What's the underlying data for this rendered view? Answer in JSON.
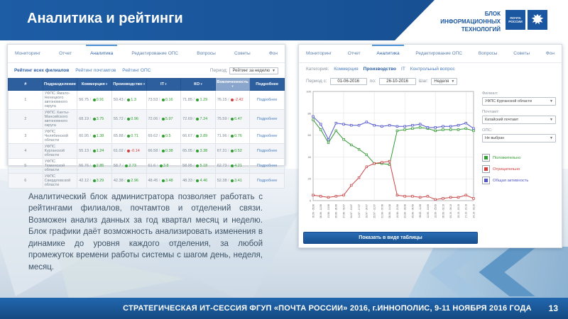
{
  "slide": {
    "title": "Аналитика и рейтинги",
    "org_block": [
      "БЛОК",
      "ИНФОРМАЦИОННЫХ",
      "ТЕХНОЛОГИЙ"
    ],
    "logo_text": [
      "ПОЧТА",
      "РОССИИ"
    ],
    "description": "Аналитический блок администратора позволяет работать с рейтингами филиалов, почтамтов и отделений связи. Возможен анализ данных за год квартал месяц и неделю. Блок графики даёт возможность анализировать изменения в динамике до уровня каждого отделения, за любой промежуток времени работы системы с шагом день, неделя, месяц.",
    "footer_text": "СТРАТЕГИЧЕСКАЯ ИТ-СЕССИЯ ФГУП «ПОЧТА РОССИИ» 2016, г.ИННОПОЛИС, 9-11 НОЯБРЯ 2016 ГОДА",
    "page_number": "13"
  },
  "colors": {
    "header_blue": "#1a57a0",
    "table_header_blue": "#2d5f9f",
    "sorted_column_blue": "#8aa6cc",
    "positive_green": "#2e9e2e",
    "negative_red": "#d43d3d",
    "activity_blue": "#4f55c8",
    "link_blue": "#4a7dbf"
  },
  "nav_tabs": [
    "Мониторинг",
    "Отчет",
    "Аналитика",
    "Редактирование ОПС",
    "Вопросы",
    "Советы",
    "Фон"
  ],
  "active_tab": "Аналитика",
  "ratings_panel": {
    "subtabs": [
      "Рейтинг всех филиалов",
      "Рейтинг почтамтов",
      "Рейтинг ОПС"
    ],
    "active_subtab": "Рейтинг всех филиалов",
    "period_label": "Период:",
    "period_value": "Рейтинг за неделю",
    "table": {
      "headers": [
        "#",
        "Подразделение",
        "Коммерция",
        "Производство",
        "IT",
        "КО",
        "Вовлеченность",
        "Подробнее"
      ],
      "sorted_column": "Вовлеченность",
      "details_label": "Подробнее",
      "rows": [
        {
          "num": "1",
          "name": "УФПС Ямало-Ненецкого автономного округа",
          "cells": [
            [
              "56.75",
              "0.91"
            ],
            [
              "50.43",
              "1.3"
            ],
            [
              "73.53",
              "0.16"
            ],
            [
              "71.85",
              "1.29"
            ],
            [
              "76.15",
              "-2.42"
            ]
          ]
        },
        {
          "num": "2",
          "name": "УФПС Ханты-Мансийского автономного округа",
          "cells": [
            [
              "68.19",
              "3.75"
            ],
            [
              "55.72",
              "0.96"
            ],
            [
              "72.06",
              "5.97"
            ],
            [
              "72.69",
              "7.24"
            ],
            [
              "75.59",
              "6.47"
            ]
          ]
        },
        {
          "num": "3",
          "name": "УФПС Челябинской области",
          "cells": [
            [
              "60.95",
              "1.38"
            ],
            [
              "65.88",
              "0.71"
            ],
            [
              "69.62",
              "0.5"
            ],
            [
              "66.67",
              "3.89"
            ],
            [
              "71.96",
              "0.76"
            ]
          ]
        },
        {
          "num": "4",
          "name": "УФПС Курганской области",
          "cells": [
            [
              "55.13",
              "1.24"
            ],
            [
              "61.02",
              "-0.14"
            ],
            [
              "66.58",
              "0.38"
            ],
            [
              "65.05",
              "3.38"
            ],
            [
              "67.31",
              "0.52"
            ]
          ]
        },
        {
          "num": "5",
          "name": "УФПС Тюменской области",
          "cells": [
            [
              "56.76",
              "2.85"
            ],
            [
              "58.7",
              "2.73"
            ],
            [
              "61.6",
              "3.8"
            ],
            [
              "58.95",
              "5.18"
            ],
            [
              "62.73",
              "4.21"
            ]
          ]
        },
        {
          "num": "6",
          "name": "УФПС Свердловской области",
          "cells": [
            [
              "42.12",
              "3.29"
            ],
            [
              "42.38",
              "2.96"
            ],
            [
              "48.45",
              "3.48"
            ],
            [
              "48.33",
              "4.46"
            ],
            [
              "52.38",
              "3.41"
            ]
          ]
        }
      ]
    }
  },
  "analytics_panel": {
    "category_label": "Категория:",
    "categories": [
      "Коммерция",
      "Производство",
      "IT",
      "Контрольный вопрос"
    ],
    "active_category": "Производство",
    "period_from_label": "Период с:",
    "period_from": "01-06-2016",
    "period_to_label": "по:",
    "period_to": "26-10-2016",
    "step_label": "Шаг:",
    "step_value": "Неделя",
    "filters": [
      {
        "label": "Филиал:",
        "value": "УФПС Курганской области"
      },
      {
        "label": "Почтамт:",
        "value": "Катайский почтамт"
      },
      {
        "label": "ОПС:",
        "value": "Не выбран"
      }
    ],
    "legend": [
      {
        "label": "Положительно",
        "color": "#2e9e2e"
      },
      {
        "label": "Отрицательно",
        "color": "#d43d3d"
      },
      {
        "label": "Общая активность",
        "color": "#4f55c8"
      }
    ],
    "table_button": "Показать в виде таблицы"
  },
  "chart_data": {
    "type": "line",
    "title": "",
    "xlabel": "",
    "ylabel": "",
    "ylim": [
      0,
      100
    ],
    "yticks": [
      0,
      20,
      40,
      60,
      80,
      100
    ],
    "grid": true,
    "legend_position": "right",
    "categories": [
      "30.05 - 05.06",
      "06.06 - 12.06",
      "13.06 - 19.06",
      "20.06 - 26.06",
      "27.06 - 03.07",
      "04.07 - 10.07",
      "11.07 - 17.07",
      "18.07 - 24.07",
      "25.07 - 31.07",
      "01.08 - 07.08",
      "08.08 - 14.08",
      "15.08 - 21.08",
      "22.08 - 28.08",
      "29.08 - 04.09",
      "05.09 - 11.09",
      "12.09 - 18.09",
      "19.09 - 25.09",
      "26.09 - 02.10",
      "03.10 - 09.10",
      "10.10 - 16.10",
      "17.10 - 23.10",
      "24.10 - 30.10"
    ],
    "series": [
      {
        "name": "Положительно",
        "color": "#339933",
        "values": [
          74,
          65,
          53,
          64,
          56,
          51,
          47,
          42,
          34,
          34,
          33,
          64,
          65,
          66,
          67,
          66,
          64,
          65,
          65,
          65,
          66,
          64
        ]
      },
      {
        "name": "Отрицательно",
        "color": "#c94444",
        "values": [
          5,
          4,
          3,
          4,
          5,
          14,
          21,
          31,
          34,
          35,
          36,
          5,
          4,
          4,
          3,
          4,
          1,
          2,
          3,
          3,
          5,
          2
        ]
      },
      {
        "name": "Общая активность",
        "color": "#5055cc",
        "values": [
          77,
          70,
          56,
          71,
          70,
          69,
          69,
          72,
          69,
          68,
          69,
          68,
          68,
          69,
          70,
          67,
          67,
          68,
          68,
          69,
          71,
          66
        ]
      }
    ]
  }
}
